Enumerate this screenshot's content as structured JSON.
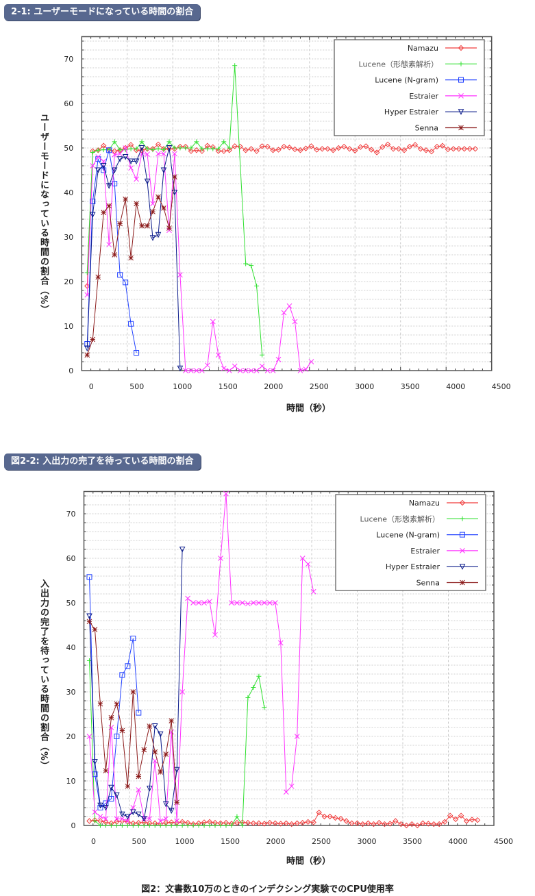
{
  "caption": "図2：文書数10万のときのインデクシング実験でのCPU使用率",
  "chart_data": [
    {
      "type": "line",
      "title": "2-1: ユーザーモードになっている時間の割合",
      "xlabel": "時間（秒）",
      "ylabel": "ユーザーモードになっている時間の割合（%）",
      "xlim": [
        0,
        4500
      ],
      "ylim": [
        0,
        75
      ],
      "xticks": [
        "0",
        "500",
        "1000",
        "1500",
        "2000",
        "2500",
        "3000",
        "3500",
        "4000",
        "4500"
      ],
      "yticks": [
        "0",
        "10",
        "20",
        "30",
        "40",
        "50",
        "60",
        "70"
      ],
      "grid": true,
      "legend": "top-right",
      "series": [
        {
          "name": "Namazu",
          "color": "#f03c3c",
          "marker": "diamond",
          "x": [
            60,
            120,
            180,
            240,
            300,
            360,
            420,
            480,
            540,
            600,
            660,
            720,
            780,
            840,
            900,
            960,
            1020,
            1080,
            1140,
            1200,
            1260,
            1320,
            1380,
            1440,
            1500,
            1560,
            1620,
            1680,
            1740,
            1800,
            1860,
            1920,
            1980,
            2040,
            2100,
            2160,
            2220,
            2280,
            2340,
            2400,
            2460,
            2520,
            2580,
            2640,
            2700,
            2760,
            2820,
            2880,
            2940,
            3000,
            3060,
            3120,
            3180,
            3240,
            3300,
            3360,
            3420,
            3480,
            3540,
            3600,
            3660,
            3720,
            3780,
            3840,
            3900,
            3960,
            4020,
            4080,
            4140,
            4200,
            4260,
            4320
          ],
          "y": [
            19,
            49.3,
            49.5,
            50.5,
            49.6,
            49.3,
            49.5,
            50,
            50.7,
            49.5,
            49.5,
            49.8,
            49.8,
            50.8,
            49.8,
            49.8,
            49.8,
            50.3,
            50.3,
            49.3,
            49.5,
            49.3,
            50.5,
            50.2,
            49.3,
            49.3,
            49.5,
            50.4,
            50.3,
            49.5,
            49.8,
            49.3,
            50.4,
            50.3,
            49.5,
            49.6,
            50.3,
            50.1,
            49.7,
            49.5,
            49.9,
            50.4,
            49.6,
            49.8,
            49.8,
            49.5,
            50.0,
            50.3,
            49.8,
            49.4,
            50.2,
            50.4,
            49.6,
            49.0,
            50.2,
            50.8,
            49.8,
            49.8,
            49.5,
            50.3,
            50.7,
            49.8,
            49.5,
            49.2,
            50.3,
            50.5,
            49.7,
            49.8,
            49.8,
            49.8,
            49.8,
            49.8
          ]
        },
        {
          "name": "Lucene（形態素解析）",
          "color": "#30e030",
          "marker": "plus",
          "x": [
            60,
            120,
            180,
            240,
            300,
            360,
            420,
            480,
            540,
            600,
            660,
            720,
            780,
            840,
            900,
            960,
            1020,
            1080,
            1140,
            1200,
            1260,
            1320,
            1380,
            1440,
            1500,
            1560,
            1620,
            1680,
            1800,
            1860,
            1920,
            1980
          ],
          "y": [
            22,
            49,
            49.5,
            49.6,
            49.6,
            51.4,
            49.6,
            49.6,
            49.8,
            49.8,
            51.4,
            49.8,
            49.6,
            49.8,
            49.6,
            51.4,
            50,
            50,
            50,
            50,
            51.4,
            49.8,
            49.8,
            49.8,
            49.8,
            51.4,
            50,
            68.5,
            24,
            23.6,
            19,
            3.5
          ]
        },
        {
          "name": "Lucene (N-gram)",
          "color": "#2040ff",
          "marker": "square",
          "x": [
            60,
            120,
            180,
            240,
            300,
            360,
            420,
            480,
            540,
            600
          ],
          "y": [
            6,
            38,
            47.5,
            45,
            49.5,
            42,
            21.5,
            19.8,
            10.5,
            4
          ]
        },
        {
          "name": "Estraier",
          "color": "#ff33ff",
          "marker": "cross",
          "x": [
            60,
            120,
            180,
            240,
            300,
            360,
            420,
            480,
            540,
            600,
            660,
            720,
            780,
            840,
            900,
            960,
            1020,
            1080,
            1140,
            1200,
            1260,
            1320,
            1380,
            1440,
            1500,
            1560,
            1620,
            1680,
            1740,
            1800,
            1860,
            1920,
            1980,
            2040,
            2100,
            2160,
            2220,
            2280,
            2340,
            2400,
            2460,
            2520
          ],
          "y": [
            17,
            46,
            48,
            47,
            28.3,
            48.5,
            48.7,
            50,
            45.5,
            43,
            48.7,
            48.6,
            37.5,
            48.7,
            48.7,
            31.5,
            48.7,
            21.5,
            0,
            0,
            0,
            0,
            1.2,
            11,
            3.5,
            0.5,
            0,
            1,
            0,
            0,
            0,
            0,
            1,
            0,
            0,
            2.5,
            13,
            14.5,
            11,
            0,
            0.3,
            2
          ]
        },
        {
          "name": "Hyper Estraier",
          "color": "#0a1a8a",
          "marker": "triangle-down",
          "x": [
            60,
            120,
            180,
            240,
            300,
            360,
            420,
            480,
            540,
            600,
            660,
            720,
            780,
            840,
            900,
            960,
            1020,
            1080
          ],
          "y": [
            5,
            35,
            45,
            46,
            41.5,
            45,
            47.5,
            48,
            47,
            47,
            50,
            42.5,
            29.8,
            30.5,
            45,
            50,
            40,
            0.5
          ]
        },
        {
          "name": "Senna",
          "color": "#8b1a1a",
          "marker": "asterisk",
          "x": [
            60,
            120,
            180,
            240,
            300,
            360,
            420,
            480,
            540,
            600,
            660,
            720,
            780,
            840,
            900,
            960,
            1020
          ],
          "y": [
            3.5,
            7,
            21,
            35.5,
            37,
            26,
            33,
            38.5,
            25.3,
            37.5,
            32.5,
            32.5,
            35.7,
            39,
            36.5,
            32,
            43.5
          ]
        }
      ]
    },
    {
      "type": "line",
      "title": "図2-2: 入出力の完了を待っている時間の割合",
      "xlabel": "時間（秒）",
      "ylabel": "入出力の完了を待っている時間の割合（%）",
      "xlim": [
        0,
        4500
      ],
      "ylim": [
        0,
        75
      ],
      "xticks": [
        "0",
        "500",
        "1000",
        "1500",
        "2000",
        "2500",
        "3000",
        "3500",
        "4000",
        "4500"
      ],
      "yticks": [
        "0",
        "10",
        "20",
        "30",
        "40",
        "50",
        "60",
        "70"
      ],
      "grid": true,
      "legend": "top-right",
      "series": [
        {
          "name": "Namazu",
          "color": "#f03c3c",
          "marker": "diamond",
          "x": [
            60,
            120,
            180,
            240,
            300,
            360,
            420,
            480,
            540,
            600,
            660,
            720,
            780,
            840,
            900,
            960,
            1020,
            1080,
            1140,
            1200,
            1260,
            1320,
            1380,
            1440,
            1500,
            1560,
            1620,
            1680,
            1740,
            1800,
            1860,
            1920,
            1980,
            2040,
            2100,
            2160,
            2220,
            2280,
            2340,
            2400,
            2460,
            2520,
            2580,
            2640,
            2700,
            2760,
            2820,
            2880,
            2940,
            3000,
            3060,
            3120,
            3180,
            3240,
            3300,
            3360,
            3420,
            3480,
            3540,
            3600,
            3660,
            3720,
            3780,
            3840,
            3900,
            3960,
            4020,
            4080,
            4140,
            4200,
            4260,
            4320
          ],
          "y": [
            1,
            1.2,
            1,
            0.7,
            0.5,
            0.8,
            1,
            0.8,
            0.5,
            0.6,
            0.7,
            0.5,
            0.5,
            0.4,
            0.6,
            0.7,
            0.6,
            0.8,
            0.6,
            0.3,
            0.5,
            0.7,
            0.8,
            0.6,
            0.5,
            0.6,
            0.4,
            0.6,
            0.7,
            0.6,
            0.5,
            0.5,
            0.4,
            0.6,
            0.5,
            0.4,
            0.5,
            0.3,
            0.5,
            0.6,
            0.8,
            0.7,
            2.9,
            2.0,
            2.0,
            1.7,
            1.5,
            1.0,
            0.5,
            0.5,
            0.3,
            0.5,
            0.3,
            0.6,
            0.3,
            0.4,
            1.0,
            0.3,
            0,
            0.3,
            0,
            0.5,
            0.4,
            0.3,
            0.3,
            0.8,
            2.2,
            1.4,
            2.2,
            1.0,
            1.3,
            1.2
          ]
        },
        {
          "name": "Lucene（形態素解析）",
          "color": "#30e030",
          "marker": "plus",
          "x": [
            60,
            120,
            180,
            240,
            300,
            360,
            420,
            480,
            540,
            600,
            660,
            720,
            780,
            840,
            900,
            960,
            1020,
            1080,
            1140,
            1200,
            1260,
            1320,
            1380,
            1440,
            1500,
            1560,
            1620,
            1680,
            1740,
            1800,
            1860,
            1920,
            1980
          ],
          "y": [
            37,
            1,
            0,
            0,
            0,
            0,
            0,
            0,
            0,
            0,
            0,
            0,
            0,
            0,
            0,
            0,
            0,
            0,
            0,
            0,
            0,
            0,
            0,
            0,
            0,
            0,
            0,
            2,
            0,
            28.7,
            31,
            33.5,
            26.5
          ]
        },
        {
          "name": "Lucene (N-gram)",
          "color": "#2040ff",
          "marker": "square",
          "x": [
            60,
            120,
            180,
            240,
            300,
            360,
            420,
            480,
            540,
            600
          ],
          "y": [
            55.8,
            11.5,
            4,
            5,
            6,
            20,
            33.8,
            35.8,
            42,
            25.3
          ]
        },
        {
          "name": "Estraier",
          "color": "#ff33ff",
          "marker": "cross",
          "x": [
            60,
            120,
            180,
            240,
            300,
            360,
            420,
            480,
            540,
            600,
            660,
            720,
            780,
            840,
            900,
            960,
            1020,
            1080,
            1140,
            1200,
            1260,
            1320,
            1380,
            1440,
            1500,
            1560,
            1620,
            1680,
            1740,
            1800,
            1860,
            1920,
            1980,
            2040,
            2100,
            2160,
            2220,
            2280,
            2340,
            2400,
            2460,
            2520
          ],
          "y": [
            20,
            3,
            2,
            1.5,
            22,
            1.5,
            1.5,
            1,
            4,
            8,
            1.5,
            1.5,
            14.5,
            1,
            1.5,
            21,
            1,
            30,
            51,
            50,
            50,
            50,
            50.3,
            42.8,
            60,
            74.5,
            50,
            50,
            50,
            49.8,
            50,
            50,
            50,
            50,
            50,
            41,
            7.5,
            8.8,
            20,
            60,
            58.7,
            52.5
          ]
        },
        {
          "name": "Hyper Estraier",
          "color": "#0a1a8a",
          "marker": "triangle-down",
          "x": [
            60,
            120,
            180,
            240,
            300,
            360,
            420,
            480,
            540,
            600,
            660,
            720,
            780,
            840,
            900,
            960,
            1020,
            1080
          ],
          "y": [
            47,
            14.3,
            4.5,
            4,
            8.5,
            6.8,
            2.5,
            2,
            3,
            2.5,
            1.5,
            8.3,
            22.3,
            20.5,
            4.8,
            3.3,
            12.5,
            62
          ]
        },
        {
          "name": "Senna",
          "color": "#8b1a1a",
          "marker": "asterisk",
          "x": [
            60,
            120,
            180,
            240,
            300,
            360,
            420,
            480,
            540,
            600,
            660,
            720,
            780,
            840,
            900,
            960,
            1020
          ],
          "y": [
            45.8,
            44,
            27.3,
            12.3,
            24.2,
            27.3,
            21.3,
            8.8,
            30,
            11,
            17,
            22.3,
            16.5,
            12,
            16,
            23.5,
            5.2
          ]
        }
      ]
    }
  ]
}
